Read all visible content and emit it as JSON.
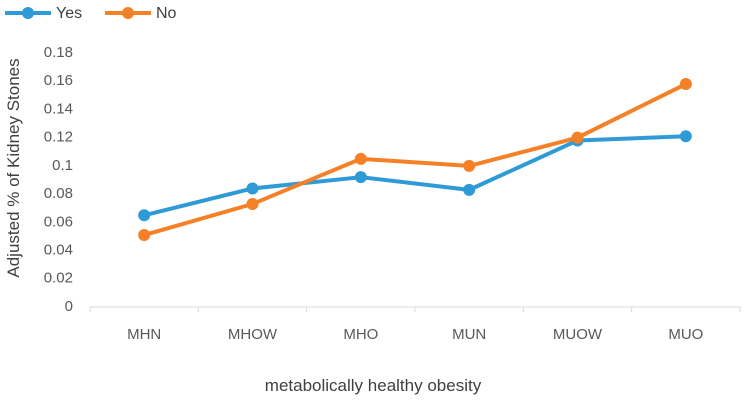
{
  "chart_data": {
    "type": "line",
    "title": "",
    "xlabel": "metabolically healthy obesity",
    "ylabel": "Adjusted % of Kidney Stones",
    "categories": [
      "MHN",
      "MHOW",
      "MHO",
      "MUN",
      "MUOW",
      "MUO"
    ],
    "ylim": [
      0,
      0.18
    ],
    "yticks": [
      "0",
      "0.02",
      "0.04",
      "0.06",
      "0.08",
      "0.1",
      "0.12",
      "0.14",
      "0.16",
      "0.18"
    ],
    "grid": false,
    "legend_position": "top-left",
    "series": [
      {
        "name": "Yes",
        "color": "#2E9BD6",
        "values": [
          0.065,
          0.084,
          0.092,
          0.083,
          0.118,
          0.121
        ]
      },
      {
        "name": "No",
        "color": "#F58025",
        "values": [
          0.051,
          0.073,
          0.105,
          0.1,
          0.12,
          0.158
        ]
      }
    ]
  }
}
